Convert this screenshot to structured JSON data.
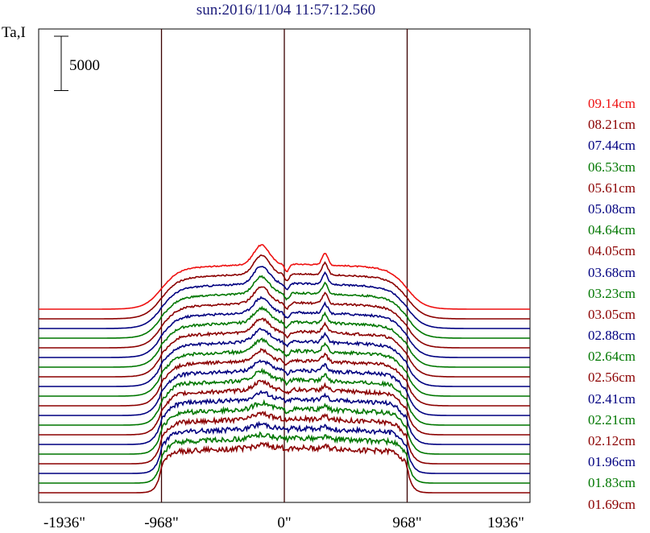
{
  "title": "sun:2016/11/04 11:57:12.560",
  "ylabel": "Ta,I",
  "chart_data": {
    "type": "line",
    "title": "sun:2016/11/04 11:57:12.560",
    "ylabel": "Ta,I",
    "xlabel": "",
    "x_ticks": [
      "-1936\"",
      "-968\"",
      "0\"",
      "968\"",
      "1936\""
    ],
    "x_tick_values": [
      -1936,
      -968,
      0,
      968,
      1936
    ],
    "xlim": [
      -1936,
      1936
    ],
    "vertical_lines": [
      -968,
      0,
      968
    ],
    "scale_bar": {
      "label": "5000",
      "value": 5000
    },
    "offset_step": 1200,
    "disk_level": 5000,
    "baseline_level": 0,
    "legend_position": "right",
    "series": [
      {
        "name": "09.14cm",
        "color": "#ee1111"
      },
      {
        "name": "08.21cm",
        "color": "#8b0000"
      },
      {
        "name": "07.44cm",
        "color": "#000080"
      },
      {
        "name": "06.53cm",
        "color": "#007700"
      },
      {
        "name": "05.61cm",
        "color": "#8b0000"
      },
      {
        "name": "05.08cm",
        "color": "#000080"
      },
      {
        "name": "04.64cm",
        "color": "#007700"
      },
      {
        "name": "04.05cm",
        "color": "#8b0000"
      },
      {
        "name": "03.68cm",
        "color": "#000080"
      },
      {
        "name": "03.23cm",
        "color": "#007700"
      },
      {
        "name": "03.05cm",
        "color": "#8b0000"
      },
      {
        "name": "02.88cm",
        "color": "#000080"
      },
      {
        "name": "02.64cm",
        "color": "#007700"
      },
      {
        "name": "02.56cm",
        "color": "#8b0000"
      },
      {
        "name": "02.41cm",
        "color": "#000080"
      },
      {
        "name": "02.21cm",
        "color": "#007700"
      },
      {
        "name": "02.12cm",
        "color": "#8b0000"
      },
      {
        "name": "01.96cm",
        "color": "#000080"
      },
      {
        "name": "01.83cm",
        "color": "#007700"
      },
      {
        "name": "01.69cm",
        "color": "#8b0000"
      }
    ]
  }
}
